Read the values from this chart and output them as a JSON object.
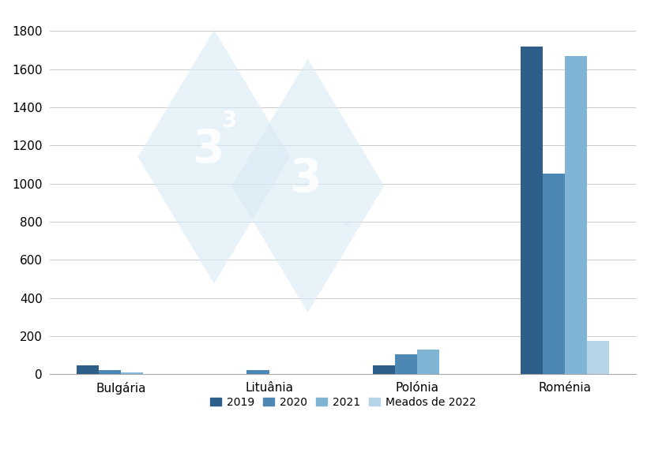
{
  "categories": [
    "Bulgária",
    "Lituânia",
    "Polónia",
    "Roménia"
  ],
  "years": [
    "2019",
    "2020",
    "2021",
    "Meados de 2022"
  ],
  "values": {
    "Bulgária": [
      45,
      22,
      8,
      2
    ],
    "Lituânia": [
      0,
      20,
      0,
      0
    ],
    "Polónia": [
      48,
      105,
      128,
      0
    ],
    "Roménia": [
      1720,
      1050,
      1670,
      175
    ]
  },
  "colors": [
    "#2e5f8a",
    "#4d88b5",
    "#80b4d4",
    "#b8d4e8"
  ],
  "ylim": [
    0,
    1900
  ],
  "yticks": [
    0,
    200,
    400,
    600,
    800,
    1000,
    1200,
    1400,
    1600,
    1800
  ],
  "background_color": "#ffffff",
  "grid_color": "#cccccc",
  "bar_width": 0.15,
  "legend_labels": [
    "2019",
    "2020",
    "2021",
    "Meados de 2022"
  ],
  "watermark_color": "#daeaf5",
  "watermark_text_color": "#ffffff"
}
